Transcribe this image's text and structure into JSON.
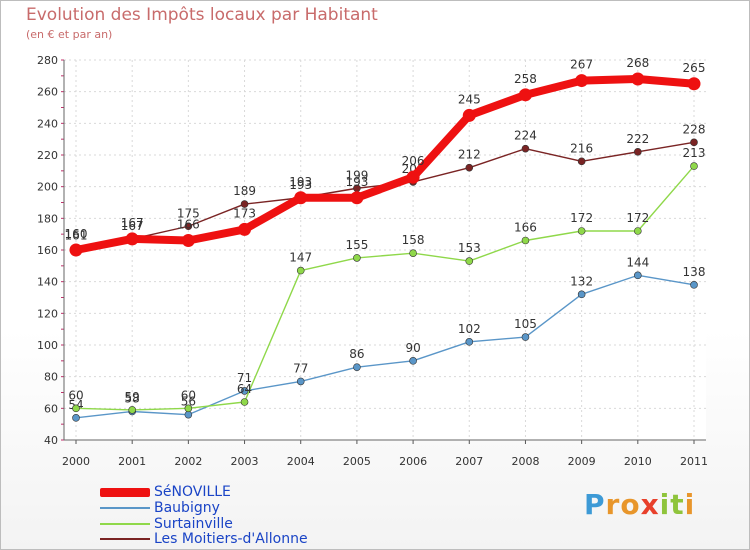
{
  "header": {
    "title": "Evolution des Impôts locaux par Habitant",
    "subtitle": "(en € et par an)"
  },
  "brand": {
    "letters": [
      "P",
      "r",
      "o",
      "x",
      "i",
      "t",
      "i"
    ],
    "colors": [
      "#3d9ad6",
      "#e8962b",
      "#e8962b",
      "#e8402b",
      "#8fc43c",
      "#8fc43c",
      "#e8962b"
    ]
  },
  "chart_data": {
    "type": "line",
    "title": "Evolution des Impôts locaux par Habitant",
    "ylabel": "(en € et par an)",
    "xlabel": "",
    "categories": [
      "2000",
      "2001",
      "2002",
      "2003",
      "2004",
      "2005",
      "2006",
      "2007",
      "2008",
      "2009",
      "2010",
      "2011"
    ],
    "ylim": [
      40,
      280
    ],
    "yticks": [
      "40",
      "60",
      "80",
      "100",
      "120",
      "140",
      "160",
      "180",
      "200",
      "220",
      "240",
      "260",
      "280"
    ],
    "grid": true,
    "legend_position": "bottom-left",
    "series": [
      {
        "name": "Les Moitiers-d'Allonne",
        "color": "#7a2424",
        "values": [
          161,
          167,
          175,
          189,
          193,
          199,
          203,
          212,
          224,
          216,
          222,
          228
        ],
        "labels": [
          "161",
          "167",
          "175",
          "189",
          "193",
          "199",
          "203",
          "212",
          "224",
          "216",
          "222",
          "228"
        ]
      },
      {
        "name": "Baubigny",
        "color": "#5a96c8",
        "values": [
          54,
          58,
          56,
          71,
          77,
          86,
          90,
          102,
          105,
          132,
          144,
          138
        ],
        "labels": [
          "54",
          "58",
          "56",
          "71",
          "77",
          "86",
          "90",
          "102",
          "105",
          "132",
          "144",
          "138"
        ]
      },
      {
        "name": "Surtainville",
        "color": "#8fd84a",
        "values": [
          60,
          59,
          60,
          64,
          147,
          155,
          158,
          153,
          166,
          172,
          172,
          213
        ],
        "labels": [
          "60",
          "59",
          "60",
          "64",
          "147",
          "155",
          "158",
          "153",
          "166",
          "172",
          "172",
          "213"
        ]
      },
      {
        "name": "SéNOVILLE",
        "color": "#ee1111",
        "values": [
          160,
          167,
          166,
          173,
          193,
          193,
          206,
          245,
          258,
          267,
          268,
          265
        ],
        "labels": [
          "160",
          "167",
          "166",
          "173",
          "193",
          "193",
          "206",
          "245",
          "258",
          "267",
          "268",
          "265"
        ]
      }
    ]
  },
  "legend": {
    "items": [
      {
        "label": "SéNOVILLE",
        "color": "#ee1111",
        "weight": "bold"
      },
      {
        "label": "Baubigny",
        "color": "#5a96c8",
        "weight": "thin"
      },
      {
        "label": "Surtainville",
        "color": "#8fd84a",
        "weight": "thin"
      },
      {
        "label": "Les Moitiers-d'Allonne",
        "color": "#7a2424",
        "weight": "thin"
      }
    ]
  }
}
